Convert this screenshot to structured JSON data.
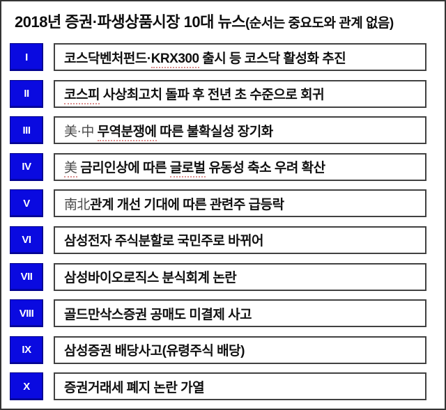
{
  "title": {
    "main": "2018년 증권·파생상품시장 10대 뉴스",
    "note": "(순서는 중요도와 관계 없음)"
  },
  "colors": {
    "badge_blue": "#0a0ae0",
    "badge_border": "#000085",
    "box_border": "#414141",
    "frame_border": "#343434",
    "text_black": "#101010",
    "hanja_gray": "#4a4a4a",
    "squiggle_red": "#c85050"
  },
  "rows": [
    {
      "numeral": "I",
      "segments": [
        {
          "text": "코스닥벤처펀드·",
          "style": "plain"
        },
        {
          "text": "KRX300",
          "style": "squiggle"
        },
        {
          "text": " 출시 등 코스닥 활성화 추진",
          "style": "plain"
        }
      ]
    },
    {
      "numeral": "II",
      "segments": [
        {
          "text": "코스피",
          "style": "squiggle"
        },
        {
          "text": " 사상최고치 돌파 후 전년 초 수준으로 회귀",
          "style": "plain"
        }
      ]
    },
    {
      "numeral": "III",
      "segments": [
        {
          "text": "美·中",
          "style": "hanja"
        },
        {
          "text": " ",
          "style": "plain"
        },
        {
          "text": "무역분쟁에",
          "style": "squiggle"
        },
        {
          "text": " 따른 불확실성 장기화",
          "style": "plain"
        }
      ]
    },
    {
      "numeral": "IV",
      "segments": [
        {
          "text": "美",
          "style": "hanja squiggle"
        },
        {
          "text": " 금리인상에 따른 ",
          "style": "plain"
        },
        {
          "text": "글로벌",
          "style": "squiggle"
        },
        {
          "text": " 유동성 축소 우려 확산",
          "style": "plain"
        }
      ]
    },
    {
      "numeral": "V",
      "segments": [
        {
          "text": "南北",
          "style": "hanja"
        },
        {
          "text": "관계 개선 기대에 따른 관련주 급등락",
          "style": "plain"
        }
      ]
    },
    {
      "numeral": "VI",
      "segments": [
        {
          "text": "삼성전자 주식분할로 국민주로 바뀌어",
          "style": "plain"
        }
      ]
    },
    {
      "numeral": "VII",
      "segments": [
        {
          "text": "삼성바이오로직스 분식회계 논란",
          "style": "plain"
        }
      ]
    },
    {
      "numeral": "VIII",
      "segments": [
        {
          "text": "골드만삭스증권 공매도 미결제 사고",
          "style": "plain"
        }
      ]
    },
    {
      "numeral": "IX",
      "segments": [
        {
          "text": "삼성증권 배당사고(유령주식 배당)",
          "style": "plain"
        }
      ]
    },
    {
      "numeral": "X",
      "segments": [
        {
          "text": "증권거래세 폐지 논란 가열",
          "style": "plain"
        }
      ]
    }
  ]
}
